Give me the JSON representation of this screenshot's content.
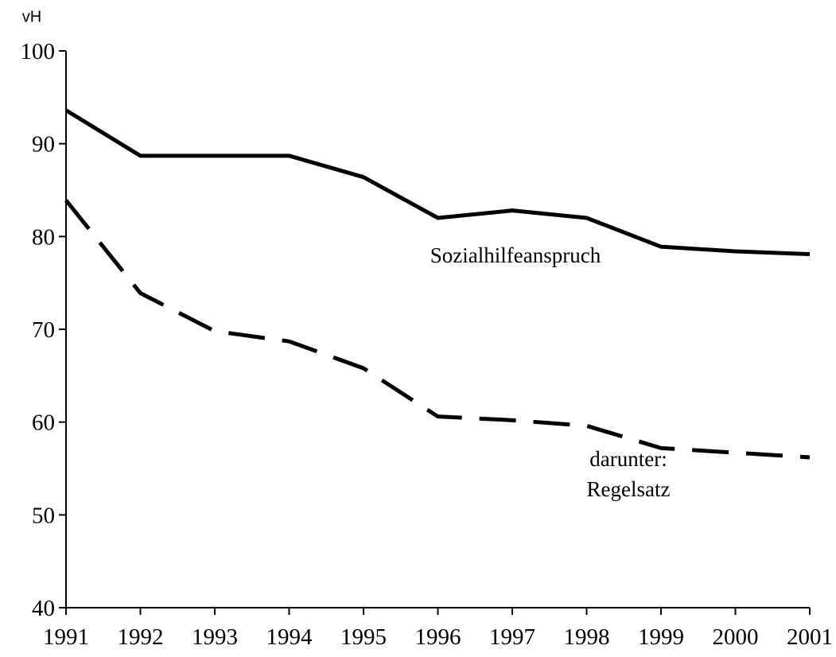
{
  "chart_data": {
    "type": "line",
    "y_label": "vH",
    "x": [
      1991,
      1992,
      1993,
      1994,
      1995,
      1996,
      1997,
      1998,
      1999,
      2000,
      2001
    ],
    "xlim": [
      1991,
      2001
    ],
    "xticks": [
      1991,
      1992,
      1993,
      1994,
      1995,
      1996,
      1997,
      1998,
      1999,
      2000,
      2001
    ],
    "ylim": [
      40,
      100
    ],
    "yticks": [
      40,
      50,
      60,
      70,
      80,
      90,
      100
    ],
    "grid": false,
    "series": [
      {
        "name": [
          "Sozialhilfeanspruch"
        ],
        "color": "#000000",
        "dash": false,
        "values": [
          93.6,
          88.7,
          88.7,
          88.7,
          86.4,
          82.0,
          82.8,
          82.0,
          78.9,
          78.4,
          78.1
        ]
      },
      {
        "name": [
          "darunter:",
          "Regelsatz"
        ],
        "color": "#000000",
        "dash": true,
        "values": [
          83.9,
          73.9,
          69.8,
          68.7,
          65.8,
          60.6,
          60.2,
          59.6,
          57.2,
          56.7,
          56.2
        ]
      }
    ]
  }
}
